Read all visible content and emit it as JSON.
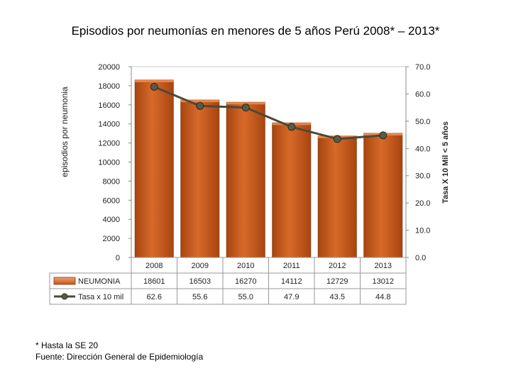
{
  "title": "Episodios por neumonías en menores de 5 años Perú  2008* – 2013*",
  "footnotes": {
    "note": "* Hasta la SE 20",
    "source": "Fuente: Dirección General de Epidemiología"
  },
  "chart_data": {
    "type": "bar",
    "categories": [
      "2008",
      "2009",
      "2010",
      "2011",
      "2012",
      "2013"
    ],
    "y_left_label": "episodios por neumonia",
    "y_right_label": "Tasa  X  10  Mil  <  5 años",
    "y_left_lim": [
      0,
      20000
    ],
    "y_left_ticks": [
      "0",
      "2000",
      "4000",
      "6000",
      "8000",
      "10000",
      "12000",
      "14000",
      "16000",
      "18000",
      "20000"
    ],
    "y_right_lim": [
      0,
      70
    ],
    "y_right_ticks": [
      "0.0",
      "10.0",
      "20.0",
      "30.0",
      "40.0",
      "50.0",
      "60.0",
      "70.0"
    ],
    "series": [
      {
        "name": "NEUMONIA",
        "type": "bar",
        "axis": "left",
        "values": [
          18601,
          16503,
          16270,
          14112,
          12729,
          13012
        ],
        "labels": [
          "18601",
          "16503",
          "16270",
          "14112",
          "12729",
          "13012"
        ]
      },
      {
        "name": "Tasa x 10 mil",
        "type": "line",
        "axis": "right",
        "values": [
          62.6,
          55.6,
          55.0,
          47.9,
          43.5,
          44.8
        ],
        "labels": [
          "62.6",
          "55.6",
          "55.0",
          "47.9",
          "43.5",
          "44.8"
        ]
      }
    ],
    "colors": {
      "bar": "#c0561a",
      "bar_light": "#e8864a",
      "line": "#4a4a3a",
      "marker": "#5a5a45"
    }
  }
}
